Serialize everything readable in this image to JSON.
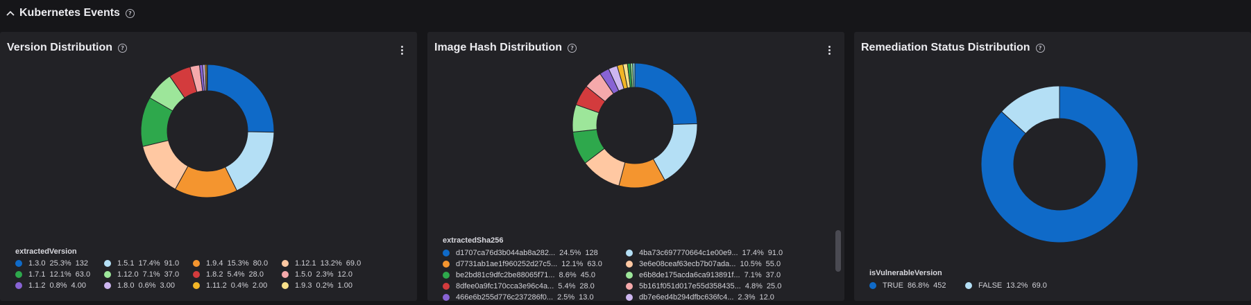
{
  "section": {
    "title": "Kubernetes Events",
    "help_icon": "?"
  },
  "panels": [
    {
      "title": "Version Distribution",
      "legend_title": "extractedVersion",
      "items": [
        {
          "label": "1.3.0",
          "pct": "25.3%",
          "value": "132",
          "raw": 132,
          "color": "#0f6ac8"
        },
        {
          "label": "1.5.1",
          "pct": "17.4%",
          "value": "91.0",
          "raw": 91,
          "color": "#b4dff5"
        },
        {
          "label": "1.9.4",
          "pct": "15.3%",
          "value": "80.0",
          "raw": 80,
          "color": "#f4952f"
        },
        {
          "label": "1.12.1",
          "pct": "13.2%",
          "value": "69.0",
          "raw": 69,
          "color": "#ffc8a2"
        },
        {
          "label": "1.7.1",
          "pct": "12.1%",
          "value": "63.0",
          "raw": 63,
          "color": "#2ea84c"
        },
        {
          "label": "1.12.0",
          "pct": "7.1%",
          "value": "37.0",
          "raw": 37,
          "color": "#9de69a"
        },
        {
          "label": "1.8.2",
          "pct": "5.4%",
          "value": "28.0",
          "raw": 28,
          "color": "#d33b3d"
        },
        {
          "label": "1.5.0",
          "pct": "2.3%",
          "value": "12.0",
          "raw": 12,
          "color": "#f5a9ab"
        },
        {
          "label": "1.1.2",
          "pct": "0.8%",
          "value": "4.00",
          "raw": 4,
          "color": "#8863d4"
        },
        {
          "label": "1.8.0",
          "pct": "0.6%",
          "value": "3.00",
          "raw": 3,
          "color": "#cdb6f0"
        },
        {
          "label": "1.11.2",
          "pct": "0.4%",
          "value": "2.00",
          "raw": 2,
          "color": "#f2b526"
        },
        {
          "label": "1.9.3",
          "pct": "0.2%",
          "value": "1.00",
          "raw": 1,
          "color": "#f8e08a"
        }
      ]
    },
    {
      "title": "Image Hash Distribution",
      "legend_title": "extractedSha256",
      "items": [
        {
          "label": "d1707ca76d3b044ab8a282...",
          "pct": "24.5%",
          "value": "128",
          "raw": 128,
          "color": "#0f6ac8"
        },
        {
          "label": "4ba73c697770664c1e00e9...",
          "pct": "17.4%",
          "value": "91.0",
          "raw": 91,
          "color": "#b4dff5"
        },
        {
          "label": "d7731ab1ae1f960252d27c5...",
          "pct": "12.1%",
          "value": "63.0",
          "raw": 63,
          "color": "#f4952f"
        },
        {
          "label": "3e6e08ceaf63ecb7b07ada...",
          "pct": "10.5%",
          "value": "55.0",
          "raw": 55,
          "color": "#ffc8a2"
        },
        {
          "label": "be2bd81c9dfc2be88065f71...",
          "pct": "8.6%",
          "value": "45.0",
          "raw": 45,
          "color": "#2ea84c"
        },
        {
          "label": "e6b8de175acda6ca913891f...",
          "pct": "7.1%",
          "value": "37.0",
          "raw": 37,
          "color": "#9de69a"
        },
        {
          "label": "8dfee0a9fc170cca3e96c4a...",
          "pct": "5.4%",
          "value": "28.0",
          "raw": 28,
          "color": "#d33b3d"
        },
        {
          "label": "5b161f051d017e55d358435...",
          "pct": "4.8%",
          "value": "25.0",
          "raw": 25,
          "color": "#f5a9ab"
        },
        {
          "label": "466e6b255d776c237286f0...",
          "pct": "2.5%",
          "value": "13.0",
          "raw": 13,
          "color": "#8863d4"
        },
        {
          "label": "db7e6ed4b294dfbc636fc4...",
          "pct": "2.3%",
          "value": "12.0",
          "raw": 12,
          "color": "#cdb6f0"
        }
      ],
      "extra_slices": [
        {
          "raw": 8,
          "color": "#f2b526"
        },
        {
          "raw": 6,
          "color": "#f8e08a"
        },
        {
          "raw": 4,
          "color": "#2ea84c"
        },
        {
          "raw": 3,
          "color": "#9de69a"
        },
        {
          "raw": 3,
          "color": "#7fc6d8"
        }
      ]
    },
    {
      "title": "Remediation Status Distribution",
      "legend_title": "isVulnerableVersion",
      "items": [
        {
          "label": "TRUE",
          "pct": "86.8%",
          "value": "452",
          "raw": 452,
          "color": "#0f6ac8"
        },
        {
          "label": "FALSE",
          "pct": "13.2%",
          "value": "69.0",
          "raw": 69,
          "color": "#b4dff5"
        }
      ]
    }
  ]
}
